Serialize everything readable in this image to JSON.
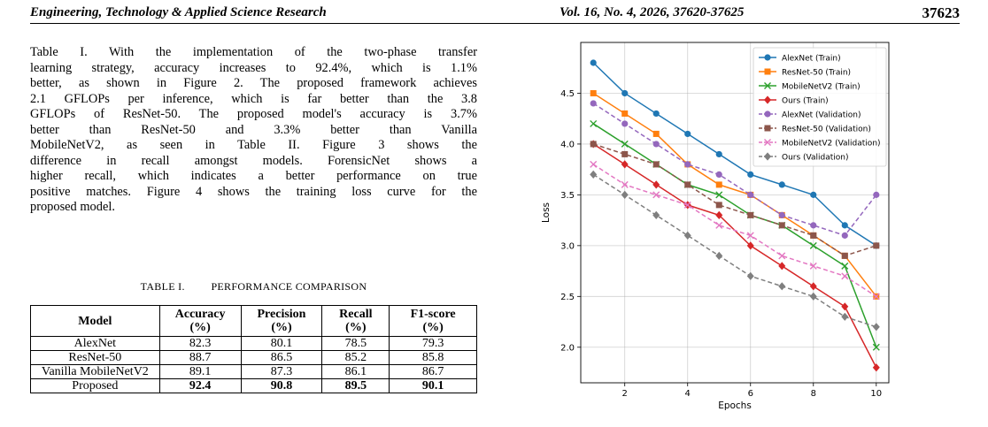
{
  "header": {
    "journal": "Engineering, Technology & Applied Science Research",
    "volume": "Vol. 16, No. 4, 2026, 37620-37625",
    "page_number": "37623"
  },
  "body_text": {
    "lines": [
      "Table I. With the implementation of the two-phase transfer",
      "learning strategy, accuracy increases to 92.4%, which is 1.1%",
      "better, as shown in Figure 2. The proposed framework achieves",
      "2.1 GFLOPs per inference, which is far better than the 3.8",
      "GFLOPs of ResNet-50. The proposed model's accuracy is 3.7%",
      "better than ResNet-50 and 3.3% better than Vanilla",
      "MobileNetV2, as seen in Table II. Figure 3 shows the",
      "difference in recall amongst models. ForensicNet shows a",
      "higher recall, which indicates a better performance on true",
      "positive matches. Figure 4 shows the training loss curve for the",
      "proposed model."
    ]
  },
  "table": {
    "caption": "TABLE I.         PERFORMANCE COMPARISON",
    "headers": [
      {
        "line1": "Model",
        "line2": ""
      },
      {
        "line1": "Accuracy",
        "line2": "(%)"
      },
      {
        "line1": "Precision",
        "line2": "(%)"
      },
      {
        "line1": "Recall",
        "line2": "(%)"
      },
      {
        "line1": "F1-score",
        "line2": "(%)"
      }
    ],
    "rows": [
      {
        "model": "AlexNet",
        "accuracy": "82.3",
        "precision": "80.1",
        "recall": "78.5",
        "f1": "79.3"
      },
      {
        "model": "ResNet-50",
        "accuracy": "88.7",
        "precision": "86.5",
        "recall": "85.2",
        "f1": "85.8"
      },
      {
        "model": "Vanilla MobileNetV2",
        "accuracy": "89.1",
        "precision": "87.3",
        "recall": "86.1",
        "f1": "86.7"
      },
      {
        "model": "Proposed",
        "accuracy": "92.4",
        "precision": "90.8",
        "recall": "89.5",
        "f1": "90.1"
      }
    ]
  },
  "chart_data": {
    "type": "line",
    "title": "",
    "xlabel": "Epochs",
    "ylabel": "Loss",
    "xlim": [
      0.6,
      10.4
    ],
    "ylim": [
      1.65,
      5.0
    ],
    "xticks": [
      2,
      4,
      6,
      8,
      10
    ],
    "yticks": [
      2.0,
      2.5,
      3.0,
      3.5,
      4.0,
      4.5
    ],
    "ytick_labels": [
      "2.0",
      "2.5",
      "3.0",
      "3.5",
      "4.0",
      "4.5"
    ],
    "grid": true,
    "legend_position": "top-right",
    "x": [
      1,
      2,
      3,
      4,
      5,
      6,
      7,
      8,
      9,
      10
    ],
    "series": [
      {
        "name": "AlexNet (Train)",
        "color": "#1f77b4",
        "marker": "circle",
        "dashed": false,
        "values": [
          4.8,
          4.5,
          4.3,
          4.1,
          3.9,
          3.7,
          3.6,
          3.5,
          3.2,
          3.0
        ]
      },
      {
        "name": "ResNet-50 (Train)",
        "color": "#ff7f0e",
        "marker": "square",
        "dashed": false,
        "values": [
          4.5,
          4.3,
          4.1,
          3.8,
          3.6,
          3.5,
          3.3,
          3.1,
          2.9,
          2.5
        ]
      },
      {
        "name": "MobileNetV2 (Train)",
        "color": "#2ca02c",
        "marker": "x",
        "dashed": false,
        "values": [
          4.2,
          4.0,
          3.8,
          3.6,
          3.5,
          3.3,
          3.2,
          3.0,
          2.8,
          2.0
        ]
      },
      {
        "name": "Ours (Train)",
        "color": "#d62728",
        "marker": "diamond",
        "dashed": false,
        "values": [
          4.0,
          3.8,
          3.6,
          3.4,
          3.3,
          3.0,
          2.8,
          2.6,
          2.4,
          1.8
        ]
      },
      {
        "name": "AlexNet (Validation)",
        "color": "#9467bd",
        "marker": "circle",
        "dashed": true,
        "values": [
          4.4,
          4.2,
          4.0,
          3.8,
          3.7,
          3.5,
          3.3,
          3.2,
          3.1,
          3.5
        ]
      },
      {
        "name": "ResNet-50 (Validation)",
        "color": "#8c564b",
        "marker": "square",
        "dashed": true,
        "values": [
          4.0,
          3.9,
          3.8,
          3.6,
          3.4,
          3.3,
          3.2,
          3.1,
          2.9,
          3.0
        ]
      },
      {
        "name": "MobileNetV2 (Validation)",
        "color": "#e377c2",
        "marker": "x",
        "dashed": true,
        "values": [
          3.8,
          3.6,
          3.5,
          3.4,
          3.2,
          3.1,
          2.9,
          2.8,
          2.7,
          2.5
        ]
      },
      {
        "name": "Ours (Validation)",
        "color": "#7f7f7f",
        "marker": "diamond",
        "dashed": true,
        "values": [
          3.7,
          3.5,
          3.3,
          3.1,
          2.9,
          2.7,
          2.6,
          2.5,
          2.3,
          2.2
        ]
      }
    ]
  }
}
